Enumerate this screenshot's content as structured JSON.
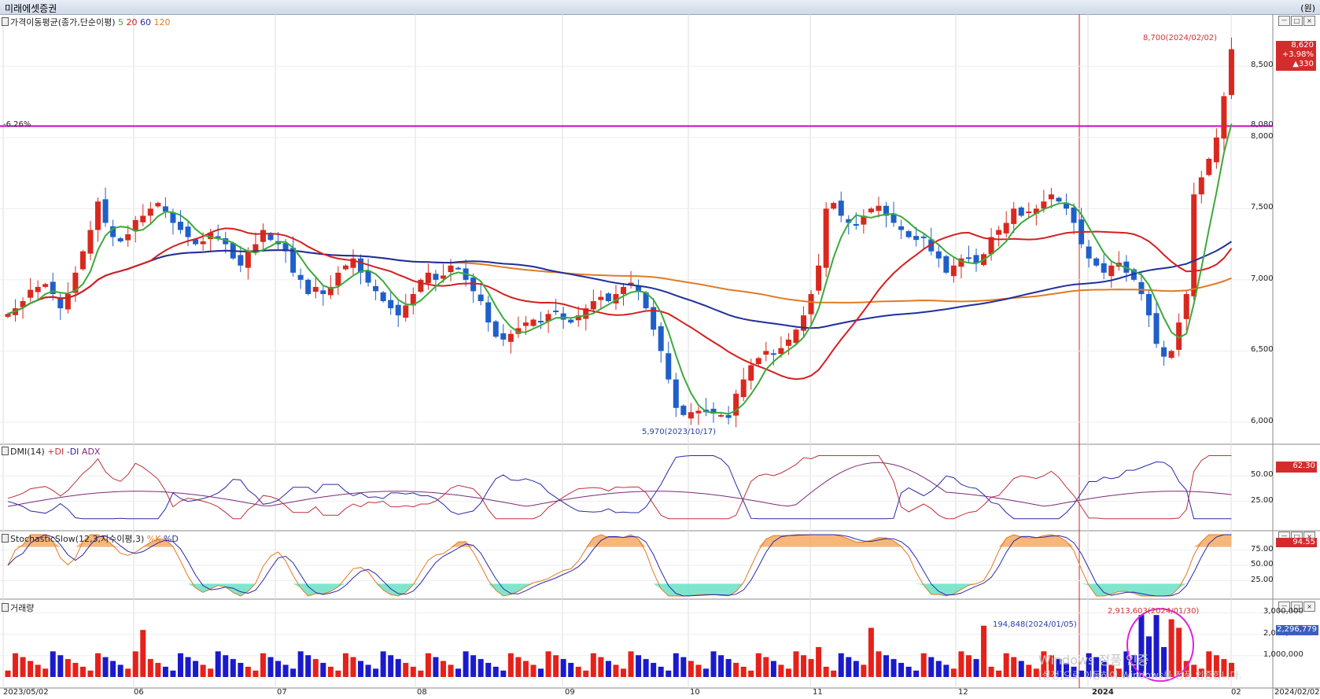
{
  "window": {
    "title": "미래에셋증권",
    "unit": "(원)"
  },
  "panes": {
    "price": {
      "title": "가격이동평균(종가,단순이평)",
      "ma_labels": [
        "5",
        "20",
        "60",
        "120"
      ],
      "ma_colors": [
        "#3caa3c",
        "#d42020",
        "#1f2f9c",
        "#e07b25"
      ],
      "y_ticks": [
        "8,500",
        "8,000",
        "7,500",
        "7,000",
        "6,500",
        "6,000"
      ],
      "hline_left_label": "-6.26%",
      "hline_right_label": "8,080",
      "hline_color": "#d400d4",
      "high_annotation": "8,700(2024/02/02)",
      "low_annotation": "5,970(2023/10/17)",
      "current_price": "8,620",
      "current_change": "+3.98%",
      "current_diff": "▲330"
    },
    "dmi": {
      "title": "DMI(14)",
      "legend": [
        "+DI",
        "-DI",
        "ADX"
      ],
      "legend_colors": [
        "#c0303a",
        "#2a2aa8",
        "#7a2a7a"
      ],
      "y_ticks": [
        "50.00",
        "25.00"
      ],
      "current_value": "62.30"
    },
    "stoch": {
      "title": "StochasticSlow(12,3,지수이평,3)",
      "legend": [
        "%K",
        "%D"
      ],
      "y_ticks": [
        "75.00",
        "50.00",
        "25.00"
      ],
      "current_value": "94.55"
    },
    "volume": {
      "title": "거래량",
      "y_ticks": [
        "3,000,000",
        "2,000,000",
        "1,000,000"
      ],
      "ann_left": "194,848(2024/01/05)",
      "ann_right": "2,913,603(2024/01/30)",
      "current_value": "2,296,779"
    }
  },
  "x_labels": [
    "2023/05/02",
    "06",
    "07",
    "08",
    "09",
    "10",
    "11",
    "12",
    "2024",
    "02",
    "2024/02/02"
  ],
  "watermark": {
    "line1": "Windows 정품 인증",
    "line2": "[설정]으로 이동하여 Windows를 정품 인증합니다."
  },
  "chart_data": [
    {
      "type": "candlestick",
      "title": "가격이동평균(종가,단순이평)",
      "y_range": [
        5900,
        8800
      ],
      "series_ma": [
        {
          "name": "5",
          "color": "#3caa3c"
        },
        {
          "name": "20",
          "color": "#d42020"
        },
        {
          "name": "60",
          "color": "#1f2f9c"
        },
        {
          "name": "120",
          "color": "#e07b25"
        }
      ],
      "close": [
        6760,
        6800,
        6850,
        6930,
        6950,
        6970,
        6900,
        6800,
        6900,
        7050,
        7200,
        7350,
        7550,
        7400,
        7300,
        7270,
        7320,
        7420,
        7450,
        7500,
        7540,
        7480,
        7400,
        7350,
        7300,
        7250,
        7270,
        7330,
        7300,
        7250,
        7150,
        7100,
        7200,
        7250,
        7350,
        7280,
        7250,
        7200,
        7050,
        7000,
        6900,
        6950,
        6900,
        6950,
        7050,
        7100,
        7150,
        7050,
        6980,
        6920,
        6850,
        6800,
        6750,
        6820,
        6900,
        7000,
        7050,
        7000,
        7030,
        7100,
        7080,
        7000,
        6920,
        6850,
        6700,
        6600,
        6580,
        6620,
        6660,
        6700,
        6720,
        6700,
        6760,
        6780,
        6720,
        6700,
        6750,
        6800,
        6850,
        6880,
        6850,
        6900,
        6950,
        6980,
        6920,
        6800,
        6650,
        6500,
        6300,
        6100,
        6050,
        6070,
        6080,
        6070,
        6060,
        6050,
        6030,
        6200,
        6300,
        6400,
        6450,
        6500,
        6480,
        6520,
        6580,
        6650,
        6750,
        6900,
        7100,
        7500,
        7540,
        7450,
        7400,
        7380,
        7450,
        7500,
        7520,
        7450,
        7400,
        7350,
        7300,
        7280,
        7300,
        7200,
        7150,
        7050,
        7100,
        7150,
        7150,
        7120,
        7180,
        7300,
        7350,
        7400,
        7500,
        7450,
        7480,
        7500,
        7550,
        7600,
        7550,
        7500,
        7400,
        7250,
        7150,
        7100,
        7050,
        7100,
        7120,
        7050,
        7000,
        6900,
        6750,
        6550,
        6460,
        6500,
        6700,
        6900,
        7600,
        7720,
        7850,
        8000,
        8290,
        8620
      ]
    },
    {
      "type": "line",
      "title": "DMI(14)",
      "y_range": [
        0,
        75
      ],
      "series": [
        {
          "name": "+DI"
        },
        {
          "name": "-DI"
        },
        {
          "name": "ADX"
        }
      ]
    },
    {
      "type": "line",
      "title": "StochasticSlow(12,3,지수이평,3)",
      "y_range": [
        0,
        100
      ],
      "series": [
        {
          "name": "%K"
        },
        {
          "name": "%D"
        }
      ]
    },
    {
      "type": "bar",
      "title": "거래량",
      "y_range": [
        0,
        3200000
      ]
    }
  ]
}
